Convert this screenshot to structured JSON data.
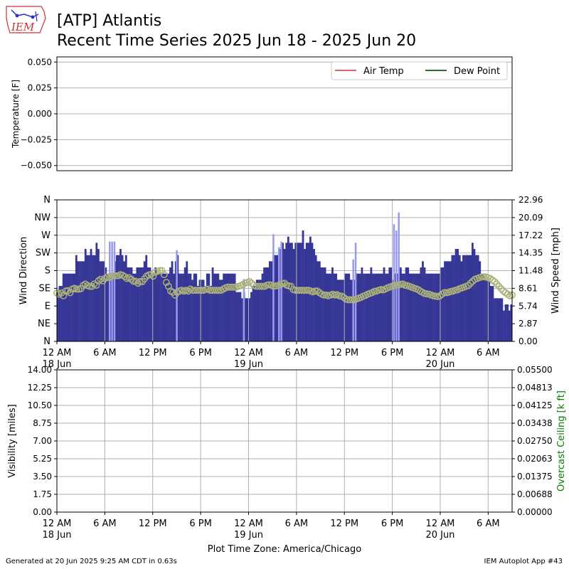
{
  "header": {
    "title_line1": "[ATP] Atlantis",
    "title_line2": "Recent Time Series 2025 Jun 18 - 2025 Jun 20",
    "logo_text": "IEM"
  },
  "footer": {
    "generated": "Generated at 20 Jun 2025 9:25 AM CDT in 0.63s",
    "app": "IEM Autoplot App #43",
    "timezone_label": "Plot Time Zone: America/Chicago"
  },
  "colors": {
    "air_temp": "#e06666",
    "dew_point": "#2e6b2e",
    "wind_speed": "#363696",
    "wind_gust": "#9999ee",
    "wind_dir": "#aab078",
    "ceiling_axis": "#008000"
  },
  "x_ticks": [
    {
      "label": "12 AM",
      "sub": "18 Jun"
    },
    {
      "label": "6 AM",
      "sub": ""
    },
    {
      "label": "12 PM",
      "sub": ""
    },
    {
      "label": "6 PM",
      "sub": ""
    },
    {
      "label": "12 AM",
      "sub": "19 Jun"
    },
    {
      "label": "6 AM",
      "sub": ""
    },
    {
      "label": "12 PM",
      "sub": ""
    },
    {
      "label": "6 PM",
      "sub": ""
    },
    {
      "label": "12 AM",
      "sub": "20 Jun"
    },
    {
      "label": "6 AM",
      "sub": ""
    }
  ],
  "chart_data": [
    {
      "type": "line",
      "ylabel": "Temperature [F]",
      "ylim": [
        -0.055,
        0.055
      ],
      "yticks": [
        "0.050",
        "0.025",
        "0.000",
        "−0.025",
        "−0.050"
      ],
      "ytick_values": [
        0.05,
        0.025,
        0,
        -0.025,
        -0.05
      ],
      "grid": true,
      "legend_placement": "top-right",
      "series": [
        {
          "name": "Air Temp",
          "values": []
        },
        {
          "name": "Dew Point",
          "values": []
        }
      ]
    },
    {
      "type": "bar",
      "ylabel": "Wind Direction",
      "y2label": "Wind Speed [mph]",
      "x_range_hours": [
        0,
        57
      ],
      "yticks_left": [
        "N",
        "NE",
        "E",
        "SE",
        "S",
        "SW",
        "W",
        "NW",
        "N"
      ],
      "yticks_right": [
        "0.00",
        "2.87",
        "5.74",
        "8.61",
        "11.48",
        "14.35",
        "17.22",
        "20.09",
        "22.96"
      ],
      "y2lim": [
        0,
        22.96
      ],
      "grid": true,
      "bar_width_hours": 0.333,
      "series": [
        {
          "name": "Wind Speed",
          "values": [
            8,
            9,
            9,
            11,
            11,
            11,
            11,
            11,
            11,
            11,
            14,
            13,
            13,
            13,
            13,
            15,
            14,
            14,
            15,
            14,
            14,
            16,
            15,
            13,
            13,
            13,
            12,
            11,
            11,
            11,
            11,
            13,
            14,
            14,
            15,
            14,
            13,
            14,
            12,
            12,
            12,
            11,
            11,
            12,
            12,
            12,
            12,
            13,
            14,
            12,
            12,
            11,
            11,
            12,
            11,
            11,
            11,
            11,
            11,
            11,
            11,
            12,
            13,
            11,
            13,
            14,
            11,
            11,
            11,
            12,
            13,
            11,
            11,
            10,
            11,
            11,
            9,
            10,
            10,
            10,
            9,
            11,
            11,
            9,
            12,
            11,
            11,
            11,
            10,
            10,
            11,
            11,
            11,
            11,
            11,
            11,
            11,
            8,
            8,
            8,
            7,
            8,
            7,
            7,
            7,
            8,
            9,
            9,
            10,
            10,
            10,
            11,
            12,
            12,
            12,
            13,
            13,
            14,
            14,
            14,
            15,
            15,
            16,
            15,
            16,
            17,
            16,
            16,
            15,
            16,
            16,
            16,
            16,
            18,
            15,
            16,
            16,
            17,
            16,
            15,
            14,
            13,
            13,
            12,
            12,
            12,
            11,
            11,
            11,
            12,
            11,
            11,
            10,
            10,
            10,
            10,
            11,
            11,
            11,
            10,
            10,
            10,
            11,
            11,
            11,
            12,
            11,
            11,
            11,
            11,
            12,
            11,
            11,
            11,
            11,
            11,
            11,
            12,
            11,
            11,
            12,
            12,
            10,
            11,
            11,
            11,
            12,
            11,
            11,
            12,
            12,
            11,
            11,
            11,
            11,
            11,
            11,
            12,
            13,
            12,
            11,
            11,
            11,
            11,
            11,
            11,
            11,
            11,
            12,
            12,
            13,
            13,
            13,
            13,
            14,
            14,
            15,
            15,
            14,
            13,
            14,
            14,
            14,
            14,
            14,
            16,
            15,
            14,
            14,
            13,
            11,
            11,
            10,
            10,
            10,
            9,
            9,
            7,
            7,
            7,
            7,
            7,
            5,
            6,
            6,
            5,
            6
          ]
        },
        {
          "name": "Wind Gust",
          "points": [
            [
              6.5,
              16.2
            ],
            [
              6.8,
              16.2
            ],
            [
              7.1,
              16.2
            ],
            [
              14.9,
              14.8
            ],
            [
              23.3,
              10.1
            ],
            [
              27.0,
              17.4
            ],
            [
              27.7,
              15.3
            ],
            [
              28.0,
              16.2
            ],
            [
              37.0,
              13.3
            ],
            [
              37.3,
              16.0
            ],
            [
              42.1,
              19.0
            ],
            [
              42.4,
              18.0
            ],
            [
              42.7,
              20.9
            ]
          ]
        },
        {
          "name": "Wind Direction",
          "description_values_deg": [
            123,
            120,
            123,
            116,
            128,
            129,
            124,
            133,
            135,
            133,
            133,
            134,
            142,
            146,
            142,
            140,
            140,
            146,
            143,
            154,
            158,
            154,
            160,
            164,
            162,
            166,
            167,
            167,
            167,
            170,
            168,
            165,
            160,
            162,
            158,
            153,
            153,
            148,
            152,
            152,
            159,
            166,
            169,
            170,
            166,
            176,
            178,
            180,
            180,
            170,
            150,
            140,
            128,
            125,
            118,
            125,
            128,
            130,
            128,
            130,
            128,
            133,
            130,
            130,
            130,
            130,
            130,
            130,
            132,
            133,
            130,
            130,
            130,
            130,
            130,
            130,
            133,
            136,
            138,
            138,
            138,
            138,
            138,
            140,
            142,
            145,
            148,
            150,
            152,
            148,
            143,
            140,
            140,
            140,
            140,
            140,
            143,
            144,
            143,
            140,
            141,
            142,
            144,
            147,
            148,
            143,
            141,
            140,
            132,
            130,
            130,
            130,
            130,
            130,
            130,
            130,
            128,
            126,
            128,
            128,
            124,
            120,
            118,
            118,
            116,
            118,
            120,
            118,
            119,
            116,
            115,
            112,
            108,
            106,
            106,
            106,
            106,
            108,
            110,
            112,
            115,
            117,
            120,
            122,
            124,
            127,
            128,
            130,
            132,
            131,
            133,
            136,
            138,
            140,
            142,
            143,
            144,
            145,
            146,
            143,
            142,
            140,
            138,
            136,
            134,
            132,
            128,
            125,
            122,
            121,
            120,
            118,
            116,
            115,
            114,
            116,
            120,
            124,
            124,
            125,
            127,
            128,
            130,
            131,
            134,
            136,
            138,
            140,
            142,
            148,
            153,
            158,
            160,
            162,
            164,
            164,
            164,
            162,
            160,
            156,
            152,
            146,
            140,
            134,
            128,
            124,
            120,
            116,
            118
          ]
        }
      ]
    },
    {
      "type": "line",
      "ylabel": "Visibility [miles]",
      "y2label": "Overcast Ceiling [k ft]",
      "ylim": [
        0,
        14
      ],
      "y2lim": [
        0,
        0.055
      ],
      "yticks_left": [
        "0.00",
        "1.75",
        "3.50",
        "5.25",
        "7.00",
        "8.75",
        "10.50",
        "12.25",
        "14.00"
      ],
      "yticks_right": [
        "0.00000",
        "0.00688",
        "0.01375",
        "0.02063",
        "0.02750",
        "0.03438",
        "0.04125",
        "0.04813",
        "0.05500"
      ],
      "grid": true,
      "series": []
    }
  ]
}
